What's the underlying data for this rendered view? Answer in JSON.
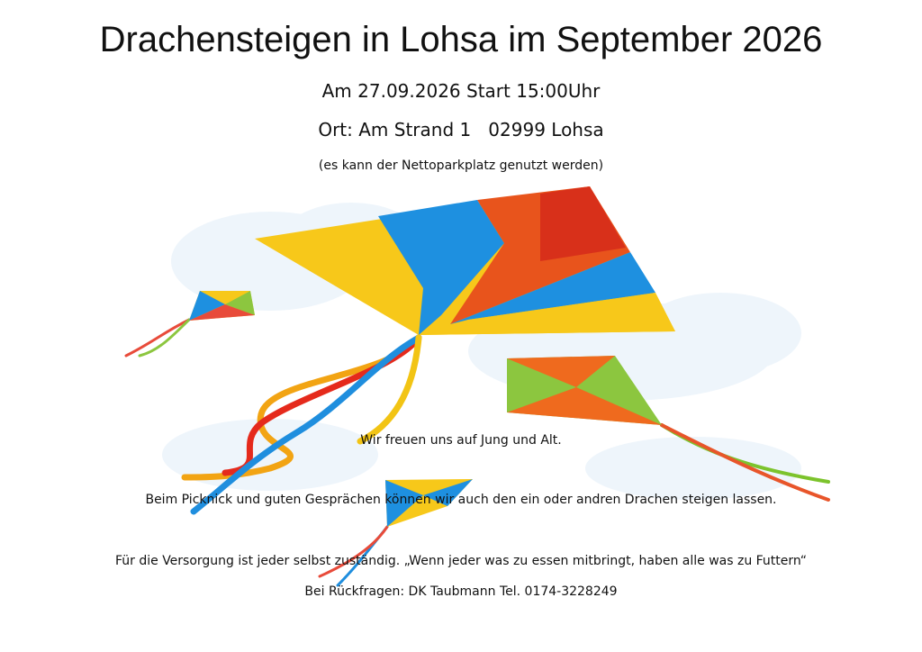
{
  "header": {
    "title": "Drachensteigen in Lohsa im September 2026",
    "date": "Am 27.09.2026 Start 15:00Uhr",
    "location": "Ort: Am Strand 1   02999 Lohsa",
    "parking": "(es kann der Nettoparkplatz genutzt werden)"
  },
  "body": {
    "lines": [
      "Wir freuen uns auf Jung und Alt.",
      "Beim Picknick und guten Gesprächen können wir auch den ein oder andren Drachen steigen lassen.",
      "Für die Versorgung ist jeder selbst zuständig. „Wenn jeder was zu essen mitbringt, haben alle was zu Futtern“",
      "Bei Rückfragen: DK Taubmann Tel. 0174-3228249"
    ]
  }
}
